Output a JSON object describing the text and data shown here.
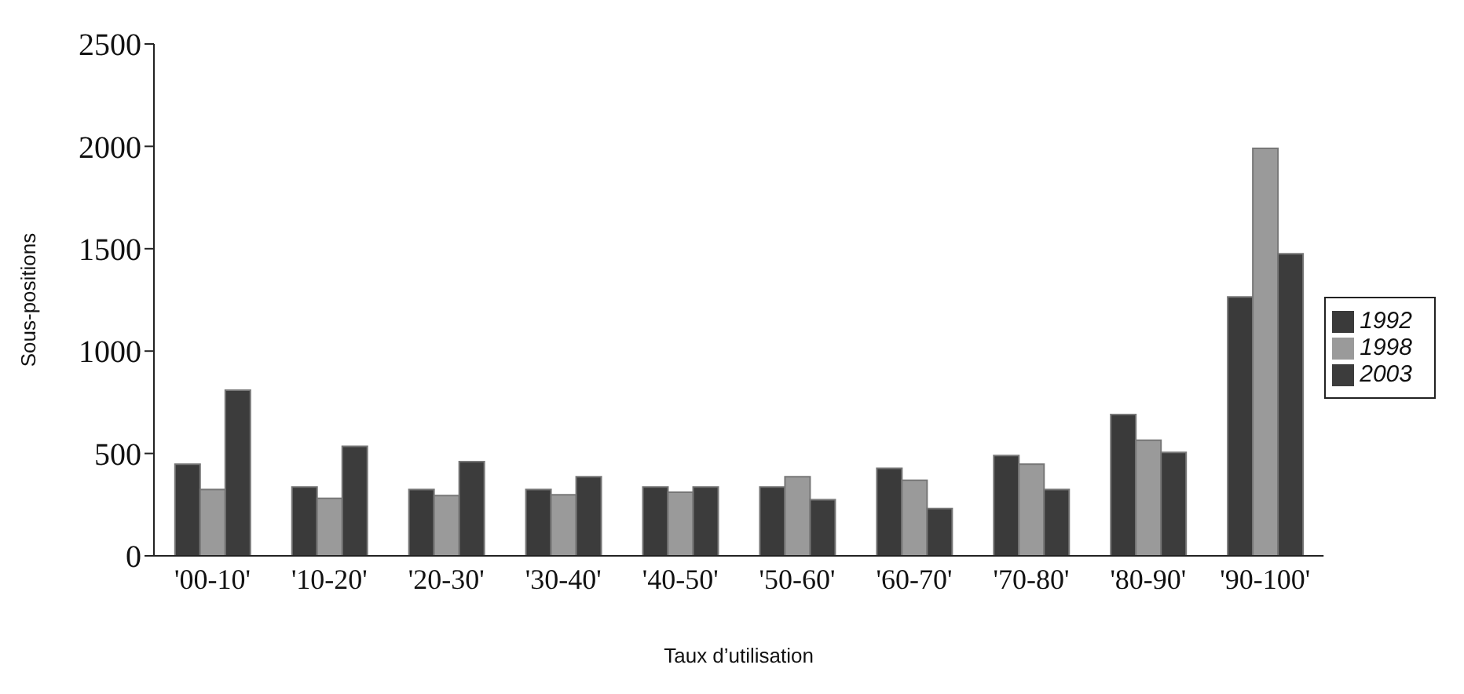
{
  "chart_data": {
    "type": "bar",
    "xlabel": "Taux d’utilisation",
    "ylabel": "Sous-positions",
    "categories": [
      "'00-10'",
      "'10-20'",
      "'20-30'",
      "'30-40'",
      "'40-50'",
      "'50-60'",
      "'60-70'",
      "'70-80'",
      "'80-90'",
      "'90-100'"
    ],
    "series": [
      {
        "name": "1992",
        "color": "#3a3a3a",
        "values": [
          448,
          336,
          324,
          324,
          336,
          336,
          428,
          490,
          690,
          1264
        ]
      },
      {
        "name": "1998",
        "color": "#9a9a9a",
        "values": [
          324,
          281,
          294,
          298,
          311,
          386,
          369,
          448,
          565,
          1990
        ]
      },
      {
        "name": "2003",
        "color": "#3c3c3c",
        "values": [
          809,
          535,
          460,
          386,
          336,
          274,
          231,
          324,
          505,
          1475
        ]
      }
    ],
    "ylim": [
      0,
      2500
    ],
    "yticks": [
      0,
      500,
      1000,
      1500,
      2000,
      2500
    ],
    "grid": false,
    "legend": "right"
  }
}
